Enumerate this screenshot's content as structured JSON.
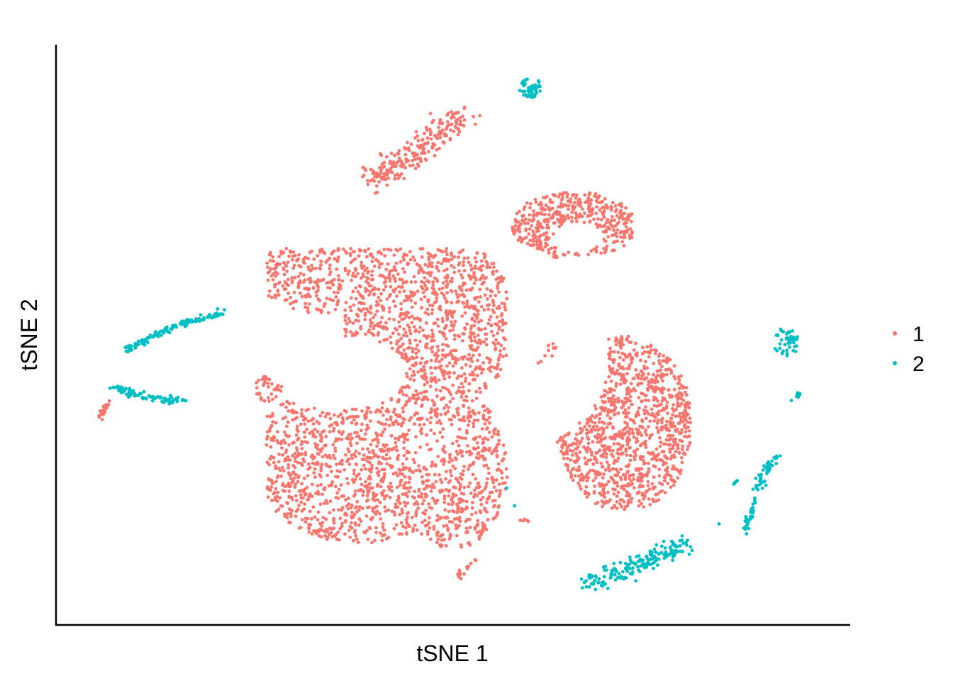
{
  "chart_data": {
    "type": "scatter",
    "title": "",
    "xlabel": "tSNE 1",
    "ylabel": "tSNE 2",
    "xlim": [
      0,
      100
    ],
    "ylim": [
      0,
      100
    ],
    "ticks_shown": false,
    "grid": false,
    "legend_position": "right",
    "series": [
      {
        "name": "1",
        "color": "#F8766D",
        "clusters": [
          {
            "shape": "blob",
            "x": [
              26,
              57
            ],
            "y": [
              11,
              65
            ],
            "count": 2600
          },
          {
            "shape": "band",
            "from": [
              39.5,
              76.5
            ],
            "to": [
              51,
              88
            ],
            "width": 2.2,
            "count": 230
          },
          {
            "shape": "blob",
            "x": [
              57.5,
              73
            ],
            "y": [
              62.5,
              75.5
            ],
            "count": 420
          },
          {
            "shape": "blob",
            "x": [
              62.5,
              80.5
            ],
            "y": [
              19,
              54
            ],
            "count": 1050
          },
          {
            "shape": "blob",
            "x": [
              24.5,
              28
            ],
            "y": [
              38,
              42.5
            ],
            "count": 35
          },
          {
            "shape": "band",
            "from": [
              4.5,
              34.8
            ],
            "to": [
              5.8,
              38
            ],
            "width": 0.4,
            "count": 18
          },
          {
            "shape": "band",
            "from": [
              50.5,
              7
            ],
            "to": [
              53,
              10.5
            ],
            "width": 0.4,
            "count": 16
          },
          {
            "shape": "band",
            "from": [
              61,
              44.5
            ],
            "to": [
              63,
              48
            ],
            "width": 0.6,
            "count": 10
          },
          {
            "shape": "blob",
            "x": [
              58.5,
              59.8
            ],
            "y": [
              16.5,
              17.3
            ],
            "count": 6
          }
        ]
      },
      {
        "name": "2",
        "color": "#00BFC4",
        "clusters": [
          {
            "shape": "arc",
            "from": [
              8,
              47
            ],
            "mid": [
              14,
              52
            ],
            "to": [
              20.5,
              53.5
            ],
            "width": 0.6,
            "count": 130
          },
          {
            "shape": "arc",
            "from": [
              6.5,
              40.5
            ],
            "mid": [
              10,
              38.3
            ],
            "to": [
              15.5,
              38.3
            ],
            "width": 0.6,
            "count": 90
          },
          {
            "shape": "blob",
            "x": [
              58.5,
              61.5
            ],
            "y": [
              91.5,
              95
            ],
            "count": 50
          },
          {
            "shape": "band",
            "from": [
              67.5,
              6
            ],
            "to": [
              80,
              12.8
            ],
            "width": 1.6,
            "count": 170
          },
          {
            "shape": "blob",
            "x": [
              91,
              94.5
            ],
            "y": [
              46,
              51
            ],
            "count": 50
          },
          {
            "shape": "band",
            "from": [
              94,
              38.3
            ],
            "to": [
              94.5,
              40
            ],
            "width": 0.4,
            "count": 8
          },
          {
            "shape": "band",
            "from": [
              89,
              23
            ],
            "to": [
              91.5,
              28.5
            ],
            "width": 0.7,
            "count": 45
          },
          {
            "shape": "band",
            "from": [
              87.5,
              15
            ],
            "to": [
              88.8,
              21
            ],
            "width": 0.5,
            "count": 30
          },
          {
            "shape": "band",
            "from": [
              86,
              23.5
            ],
            "to": [
              86.8,
              24.3
            ],
            "width": 0.3,
            "count": 5
          },
          {
            "shape": "blob",
            "x": [
              56.6,
              57.2
            ],
            "y": [
              22.4,
              22.8
            ],
            "count": 1
          },
          {
            "shape": "blob",
            "x": [
              57.6,
              58.2
            ],
            "y": [
              19.6,
              20.0
            ],
            "count": 1
          },
          {
            "shape": "blob",
            "x": [
              84,
              84.6
            ],
            "y": [
              16.2,
              16.6
            ],
            "count": 1
          }
        ]
      }
    ]
  }
}
